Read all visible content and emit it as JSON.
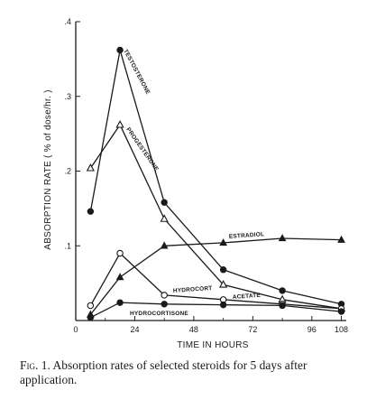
{
  "chart_data": {
    "type": "line",
    "title": "",
    "xlabel": "TIME IN HOURS",
    "ylabel": "ABSORPTION RATE ( % of dose/hr. )",
    "xlim": [
      0,
      110
    ],
    "ylim": [
      0,
      0.4
    ],
    "x_ticks": [
      {
        "value": 0,
        "label": "0"
      },
      {
        "value": 24,
        "label": "24"
      },
      {
        "value": 48,
        "label": "48"
      },
      {
        "value": 72,
        "label": "72"
      },
      {
        "value": 96,
        "label": "96"
      },
      {
        "value": 108,
        "label": "108"
      }
    ],
    "x_minor_ticks": [
      12,
      36,
      60,
      84
    ],
    "y_ticks": [
      {
        "value": 0.1,
        "label": ".1"
      },
      {
        "value": 0.2,
        "label": ".2"
      },
      {
        "value": 0.3,
        "label": ".3"
      },
      {
        "value": 0.4,
        "label": ".4"
      }
    ],
    "grid": false,
    "series": [
      {
        "name": "TESTOSTERONE",
        "marker": "filled-circle",
        "x": [
          6,
          18,
          36,
          60,
          84,
          108
        ],
        "y": [
          0.146,
          0.362,
          0.158,
          0.068,
          0.04,
          0.022
        ]
      },
      {
        "name": "PROGESTERONE",
        "marker": "open-triangle",
        "x": [
          6,
          18,
          36,
          60,
          84,
          108
        ],
        "y": [
          0.204,
          0.262,
          0.136,
          0.048,
          0.028,
          0.016
        ]
      },
      {
        "name": "ESTRADIOL",
        "marker": "filled-triangle",
        "x": [
          6,
          18,
          36,
          60,
          84,
          108
        ],
        "y": [
          0.008,
          0.058,
          0.1,
          0.104,
          0.11,
          0.108
        ]
      },
      {
        "name": "HYDROCORT",
        "marker": "open-circle",
        "x": [
          6,
          18,
          36,
          60,
          84,
          108
        ],
        "y": [
          0.02,
          0.09,
          0.034,
          0.028,
          0.022,
          0.016
        ]
      },
      {
        "name": "ACETATE",
        "marker": "open-circle",
        "x": [
          6,
          18,
          36,
          60,
          84,
          108
        ],
        "y": [
          0.02,
          0.09,
          0.034,
          0.028,
          0.022,
          0.016
        ]
      },
      {
        "name": "HYDROCORTISONE",
        "marker": "filled-circle",
        "x": [
          6,
          18,
          36,
          60,
          84,
          108
        ],
        "y": [
          0.004,
          0.024,
          0.022,
          0.021,
          0.02,
          0.012
        ]
      }
    ]
  },
  "caption": {
    "figure_number": "Fig. 1.",
    "text": "Absorption rates of selected steroids for 5 days after application."
  }
}
